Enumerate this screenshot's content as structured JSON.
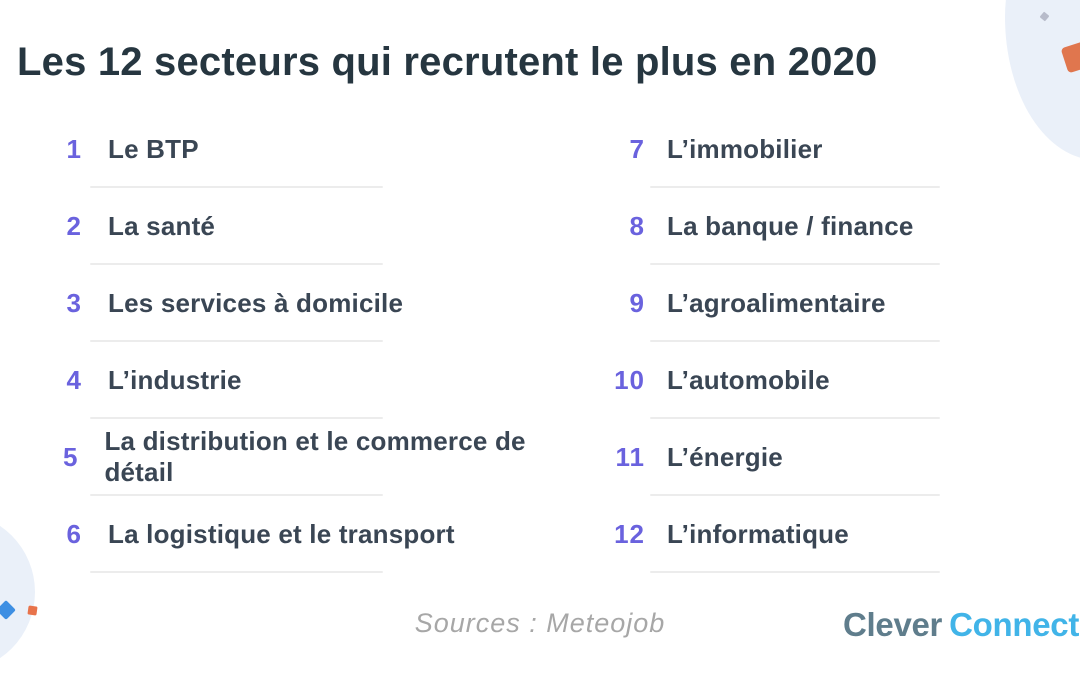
{
  "title": "Les 12 secteurs qui recrutent le plus en 2020",
  "columns": {
    "left": [
      {
        "num": "1",
        "label": "Le BTP"
      },
      {
        "num": "2",
        "label": "La santé"
      },
      {
        "num": "3",
        "label": "Les services à domicile"
      },
      {
        "num": "4",
        "label": "L’industrie"
      },
      {
        "num": "5",
        "label": "La distribution et le commerce de détail"
      },
      {
        "num": "6",
        "label": "La logistique et le transport"
      }
    ],
    "right": [
      {
        "num": "7",
        "label": "L’immobilier"
      },
      {
        "num": "8",
        "label": "La banque / finance"
      },
      {
        "num": "9",
        "label": "L’agroalimentaire"
      },
      {
        "num": "10",
        "label": "L’automobile"
      },
      {
        "num": "11",
        "label": "L’énergie"
      },
      {
        "num": "12",
        "label": "L’informatique"
      }
    ]
  },
  "footer": {
    "source": "Sources : Meteojob",
    "logo_part1": "Clever",
    "logo_part2": "Connect"
  },
  "colors": {
    "accent_number": "#6A62DE",
    "title_text": "#263640",
    "item_text": "#3A4654",
    "divider": "#ECECEC",
    "source_text": "#A7A7A7",
    "logo_gray": "#5F7D8C",
    "logo_blue": "#41B4E8",
    "blob_pale_blue": "#EAF0F9",
    "accent_orange": "#E0764E",
    "accent_blue_diamond": "#3E8FE3",
    "accent_gray_square": "#B7BBCA"
  }
}
